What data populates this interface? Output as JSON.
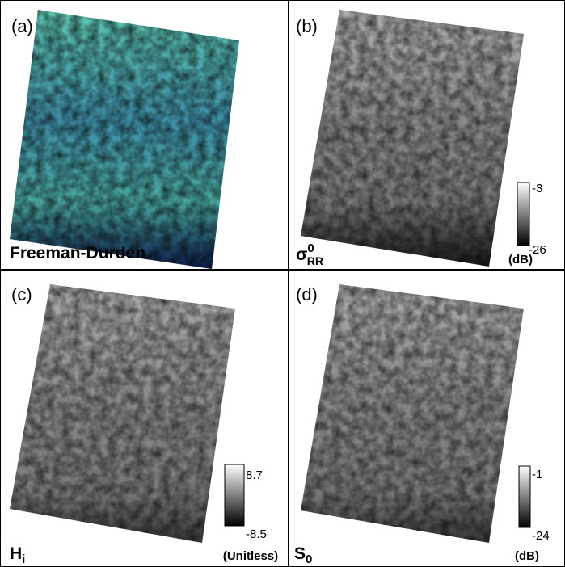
{
  "panels": [
    {
      "label": "(a)",
      "caption": {
        "main": "Freeman-Durden"
      }
    },
    {
      "label": "(b)",
      "caption": {
        "main": "σ",
        "sup": "0",
        "sub": "RR"
      },
      "colorbar": {
        "max": -3,
        "min": -26,
        "unit": "(dB)"
      }
    },
    {
      "label": "(c)",
      "caption": {
        "main": "H",
        "sub": "i"
      },
      "colorbar": {
        "max": 8.7,
        "min": -8.5,
        "unit": "(Unitless)"
      }
    },
    {
      "label": "(d)",
      "caption": {
        "main": "S",
        "sub": "0"
      },
      "colorbar": {
        "max": -1,
        "min": -24,
        "unit": "(dB)"
      }
    }
  ]
}
